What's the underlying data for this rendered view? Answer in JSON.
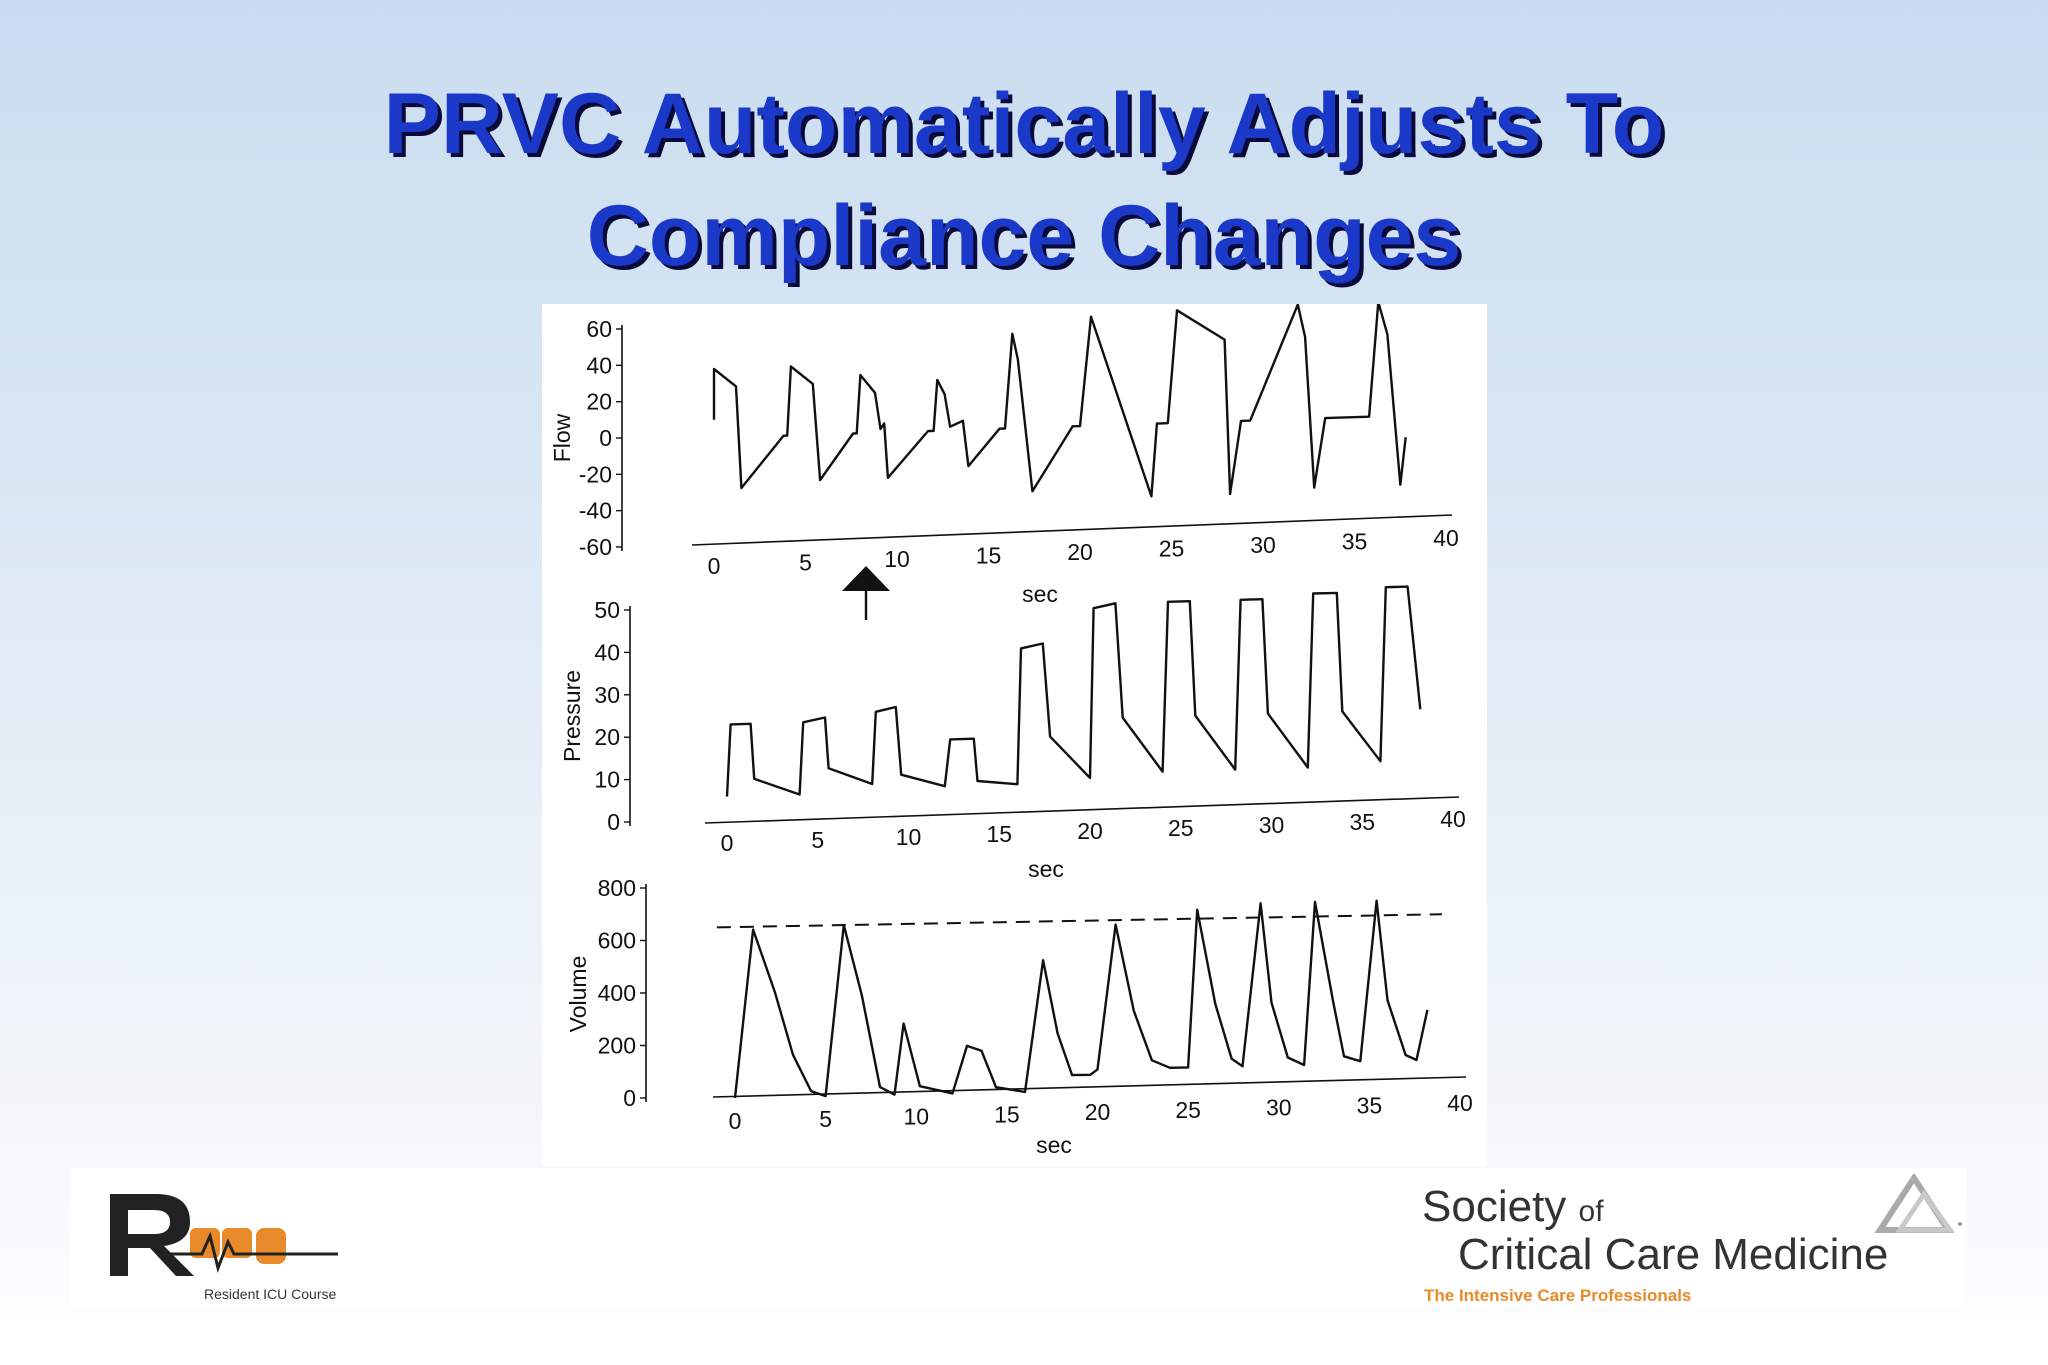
{
  "slide": {
    "title_line1": "PRVC Automatically Adjusts To",
    "title_line2": "Compliance Changes",
    "title_color": "#1a39c8",
    "title_shadow_color": "#0a0a3a"
  },
  "chart_data": [
    {
      "type": "line",
      "ylabel": "Flow",
      "xlabel": "sec",
      "xlim": [
        0,
        40
      ],
      "ylim": [
        -60,
        60
      ],
      "x_ticks": [
        "0",
        "5",
        "10",
        "15",
        "20",
        "25",
        "30",
        "35",
        "40"
      ],
      "y_ticks": [
        "60",
        "40",
        "20",
        "0",
        "-20",
        "-40",
        "-60"
      ],
      "annotation": "up-arrow marking compliance change near 8 sec",
      "series": [
        {
          "x": [
            0.0,
            0.0,
            1.2,
            1.5,
            3.8,
            4.0,
            4.2,
            5.4,
            5.8,
            7.6,
            7.8,
            8.0,
            8.8,
            9.1,
            9.3,
            9.5,
            11.7,
            12.0,
            12.2,
            12.6,
            12.9,
            13.6,
            13.9,
            15.6,
            15.9,
            16.3,
            16.6,
            17.4,
            19.6,
            20.0,
            20.6,
            21.1,
            23.9,
            24.2,
            24.8,
            25.3,
            27.9,
            28.2,
            28.8,
            29.3,
            31.9,
            32.3,
            32.8,
            33.4,
            35.8,
            36.3,
            36.8,
            37.5,
            37.8
          ],
          "y": [
            10,
            38,
            28,
            -28,
            0,
            0,
            38,
            28,
            -25,
            0,
            0,
            32,
            22,
            2,
            5,
            -25,
            0,
            0,
            28,
            20,
            2,
            5,
            -20,
            0,
            0,
            52,
            38,
            -35,
            0,
            0,
            60,
            45,
            -40,
            0,
            0,
            62,
            45,
            -40,
            0,
            0,
            63,
            45,
            -38,
            0,
            0,
            63,
            45,
            -38,
            -12
          ]
        }
      ]
    },
    {
      "type": "line",
      "ylabel": "Pressure",
      "xlabel": "sec",
      "xlim": [
        0,
        40
      ],
      "ylim": [
        0,
        50
      ],
      "x_ticks": [
        "0",
        "5",
        "10",
        "15",
        "20",
        "25",
        "30",
        "35",
        "40"
      ],
      "y_ticks": [
        "50",
        "40",
        "30",
        "20",
        "10",
        "0"
      ],
      "series": [
        {
          "x": [
            0.0,
            0.2,
            1.3,
            1.5,
            4.0,
            4.2,
            5.4,
            5.6,
            8.0,
            8.2,
            9.3,
            9.6,
            12.0,
            12.3,
            13.6,
            13.8,
            16.0,
            16.2,
            17.4,
            17.8,
            20.0,
            20.2,
            21.4,
            21.8,
            24.0,
            24.3,
            25.5,
            25.8,
            28.0,
            28.3,
            29.5,
            29.8,
            32.0,
            32.3,
            33.6,
            33.9,
            36.0,
            36.3,
            37.5,
            38.2
          ],
          "y": [
            6,
            23,
            23,
            10,
            6,
            23,
            24,
            12,
            8,
            25,
            26,
            10,
            7,
            18,
            18,
            8,
            7,
            39,
            40,
            18,
            8,
            48,
            49,
            22,
            9,
            49,
            49,
            22,
            9,
            49,
            49,
            22,
            9,
            50,
            50,
            22,
            10,
            51,
            51,
            22
          ]
        }
      ]
    },
    {
      "type": "line",
      "ylabel": "Volume",
      "xlabel": "sec",
      "xlim": [
        0,
        40
      ],
      "ylim": [
        0,
        800
      ],
      "x_ticks": [
        "0",
        "5",
        "10",
        "15",
        "20",
        "25",
        "30",
        "35",
        "40"
      ],
      "y_ticks": [
        "800",
        "600",
        "400",
        "200",
        "0"
      ],
      "annotation": "dashed target tidal volume line at ~650 rising to ~700",
      "target_line": {
        "x": [
          -1,
          39
        ],
        "y": [
          650,
          700
        ]
      },
      "series": [
        {
          "x": [
            0.0,
            1.0,
            2.2,
            3.2,
            4.2,
            5.0,
            6.0,
            7.0,
            8.0,
            8.8,
            9.3,
            10.2,
            12.0,
            12.8,
            13.6,
            14.4,
            16.0,
            17.0,
            17.8,
            18.6,
            19.6,
            20.0,
            21.0,
            22.0,
            23.0,
            24.0,
            25.0,
            25.5,
            26.5,
            27.4,
            28.0,
            29.0,
            29.6,
            30.5,
            31.4,
            32.0,
            33.0,
            33.6,
            34.5,
            35.4,
            36.0,
            37.0,
            37.6,
            38.2
          ],
          "y": [
            0,
            640,
            400,
            160,
            20,
            0,
            650,
            380,
            30,
            0,
            270,
            30,
            0,
            180,
            160,
            20,
            0,
            500,
            220,
            60,
            60,
            80,
            630,
            300,
            110,
            80,
            80,
            680,
            320,
            110,
            80,
            700,
            320,
            110,
            80,
            700,
            320,
            110,
            90,
            700,
            320,
            110,
            90,
            280
          ]
        }
      ]
    }
  ],
  "logos": {
    "ricu_caption": "Resident ICU Course",
    "sccm_line1": "Society",
    "sccm_of": "of",
    "sccm_line2": "Critical Care Medicine",
    "sccm_tagline": "The Intensive Care Professionals",
    "ricu_orange": "#e8892a",
    "sccm_orange": "#e8892a"
  }
}
